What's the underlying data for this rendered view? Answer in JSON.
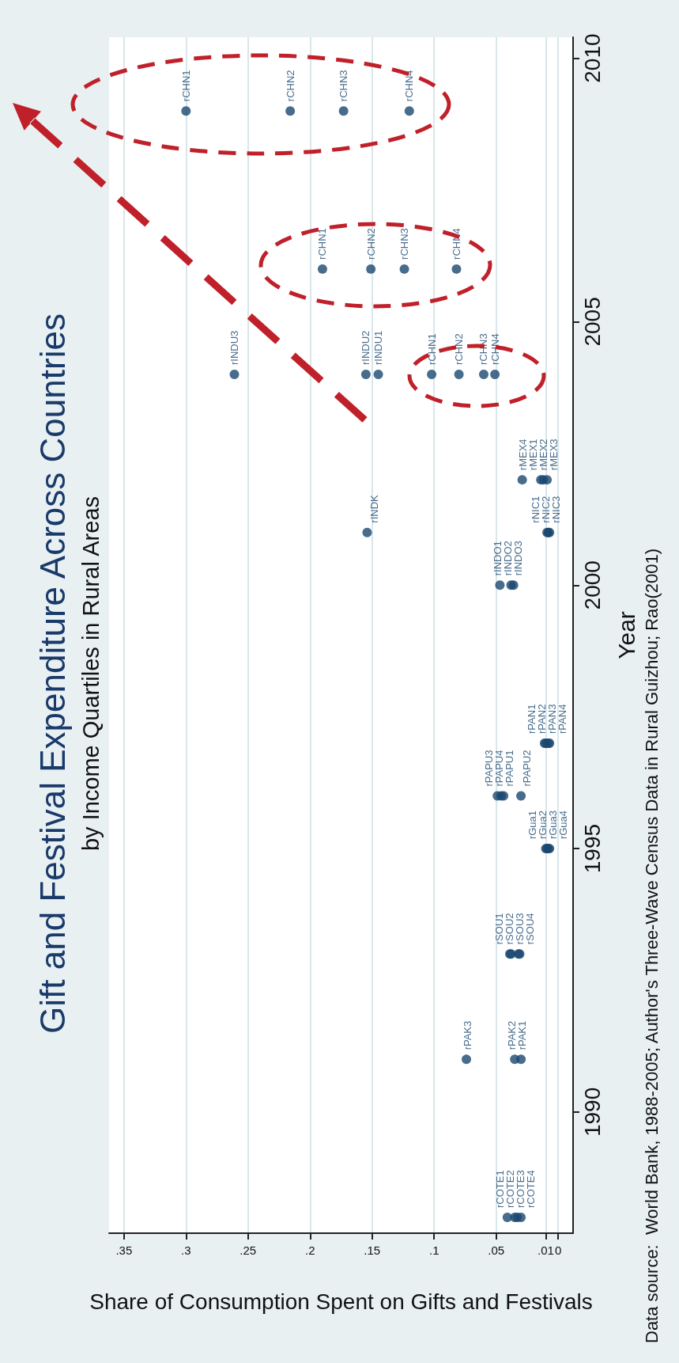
{
  "chart_data": {
    "type": "scatter",
    "title": "Gift and Festival Expenditure Across Countries",
    "subtitle": "by Income Quartiles in Rural Areas",
    "xlabel": "Share of Consumption Spent on Gifts and Festivals",
    "ylabel": "Year",
    "annotations": [
      "Data source:  World Bank, 1988-2005; Author's Three-Wave Census Data in Rural Guizhou; Rao(2001)"
    ],
    "x": [
      0.041,
      0.035,
      0.033,
      0.03,
      0.03,
      0.035,
      0.074,
      0.039,
      0.038,
      0.032,
      0.031,
      0.01,
      0.009,
      0.008,
      0.007,
      0.044,
      0.03,
      0.049,
      0.046,
      0.011,
      0.01,
      0.008,
      0.007,
      0.047,
      0.038,
      0.036,
      0.154,
      0.009,
      0.008,
      0.007,
      0.014,
      0.012,
      0.009,
      0.029,
      0.145,
      0.155,
      0.261,
      0.102,
      0.08,
      0.06,
      0.051,
      0.19,
      0.151,
      0.124,
      0.082,
      0.3,
      0.216,
      0.173,
      0.12
    ],
    "series": [
      {
        "color": "#1a476f",
        "values": [
          1988,
          1988,
          1988,
          1988,
          1991,
          1991,
          1991,
          1993,
          1993,
          1993,
          1993,
          1995,
          1995,
          1995,
          1995,
          1996,
          1996,
          1996,
          1996,
          1997,
          1997,
          1997,
          1997,
          2000,
          2000,
          2000,
          2001,
          2001,
          2001,
          2001,
          2002,
          2002,
          2002,
          2002,
          2004,
          2004,
          2004,
          2004,
          2004,
          2004,
          2004,
          2006,
          2006,
          2006,
          2006,
          2009,
          2009,
          2009,
          2009
        ],
        "value_labels": [
          "rCOTE1",
          "rCOTE2",
          "rCOTE3",
          "rCOTE4",
          "rPAK1",
          "rPAK2",
          "rPAK3",
          "rSOU1",
          "rSOU2",
          "rSOU3",
          "rSOU4",
          "rGua1",
          "rGua2",
          "rGua3",
          "rGua4",
          "rPAPU1",
          "rPAPU2",
          "rPAPU3",
          "rPAPU4",
          "rPAN1",
          "rPAN2",
          "rPAN3",
          "rPAN4",
          "rINDO1",
          "rINDO2",
          "rINDO3",
          "rINDK",
          "rNIC1",
          "rNIC2",
          "rNIC3",
          "rMEX1",
          "rMEX2",
          "rMEX3",
          "rMEX4",
          "rINDU1",
          "rINDU2",
          "rINDU3",
          "rCHN1",
          "rCHN2",
          "rCHN3",
          "rCHN4",
          "rCHN1",
          "rCHN2",
          "rCHN3",
          "rCHN4",
          "rCHN1",
          "rCHN2",
          "rCHN3",
          "rCHN4"
        ]
      }
    ],
    "xlim": [
      0.362,
      -0.012
    ],
    "xticks": [
      {
        "value": 0.35,
        "label": ".35"
      },
      {
        "value": 0.3,
        "label": ".3"
      },
      {
        "value": 0.25,
        "label": ".25"
      },
      {
        "value": 0.2,
        "label": ".2"
      },
      {
        "value": 0.15,
        "label": ".15"
      },
      {
        "value": 0.1,
        "label": ".1"
      },
      {
        "value": 0.05,
        "label": ".05"
      },
      {
        "value": 0.01,
        "label": ".01"
      },
      {
        "value": 0,
        "label": "0"
      }
    ],
    "ylim": [
      1987.7,
      2010.4
    ],
    "yticks": [
      1990,
      1995,
      2000,
      2005,
      2010
    ],
    "grid": "x",
    "marker": "circle"
  }
}
